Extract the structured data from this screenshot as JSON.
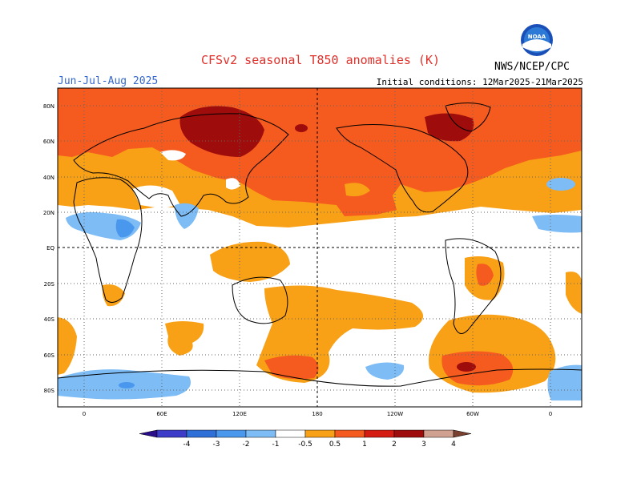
{
  "title": "CFSv2 seasonal T850 anomalies (K)",
  "season": "Jun-Jul-Aug 2025",
  "initial_conditions": "Initial conditions: 12Mar2025-21Mar2025",
  "agency": "NWS/NCEP/CPC",
  "logo_text": "NOAA",
  "lat_labels": [
    "80N",
    "60N",
    "40N",
    "20N",
    "EQ",
    "20S",
    "40S",
    "60S",
    "80S"
  ],
  "lon_labels": [
    "0",
    "60E",
    "120E",
    "180",
    "120W",
    "60W",
    "0"
  ],
  "colorbar": {
    "tick_labels": [
      "-4",
      "-3",
      "-2",
      "-1",
      "-0.5",
      "0.5",
      "1",
      "2",
      "3",
      "4"
    ],
    "colors": [
      "#2a0e8a",
      "#3c3cc8",
      "#2f6fd8",
      "#4a98ee",
      "#7dbcf5",
      "#ffffff",
      "#f8a016",
      "#f55a1e",
      "#d41c12",
      "#9e0c0c",
      "#d0a090",
      "#7a4030"
    ]
  },
  "palette": {
    "warm_weak": "#f8a016",
    "warm_mid": "#f55a1e",
    "warm_strong": "#9e0c0c",
    "cool_weak": "#7dbcf5",
    "cool_mid": "#4a98ee",
    "title_red": "#e0302a",
    "season_blue": "#3366cc"
  }
}
